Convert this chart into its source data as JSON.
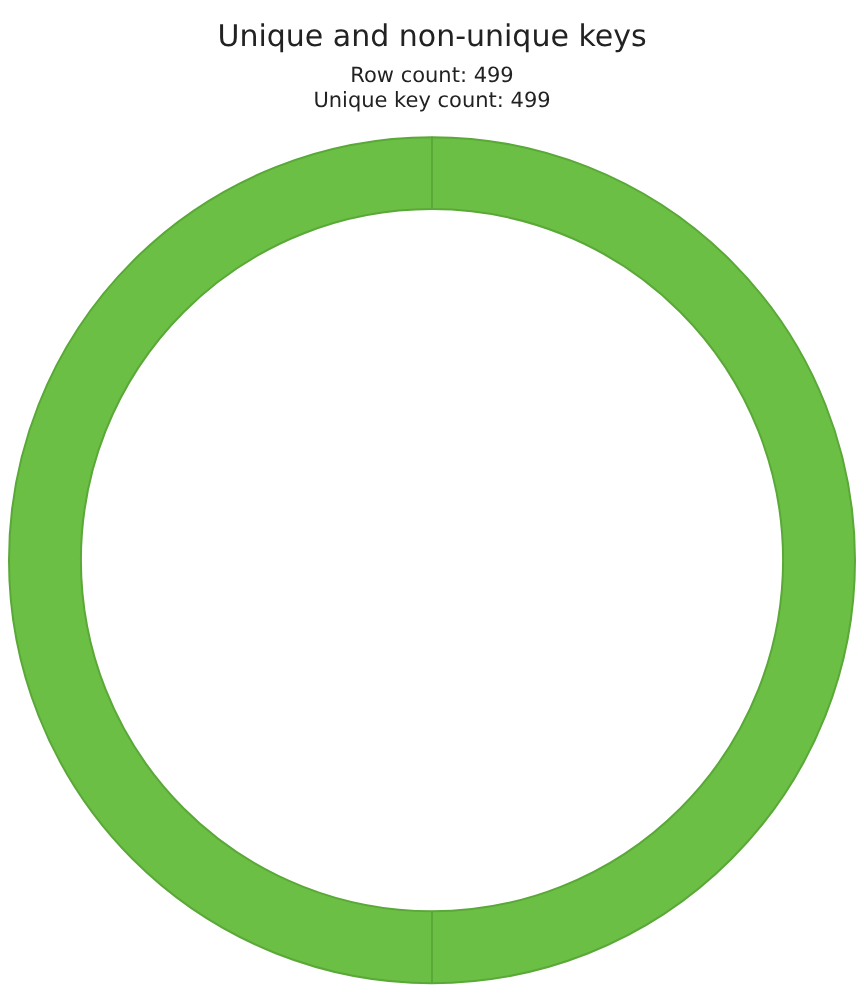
{
  "chart_data": {
    "type": "donut",
    "title": "Unique and non-unique keys",
    "subtitle": "Row count: 499",
    "annotations": [
      "Unique key count: 499"
    ],
    "categories": [
      null,
      null
    ],
    "values": [
      50,
      50
    ],
    "colors": [
      "#6cbf45",
      "#6cbf45"
    ],
    "legend": false
  }
}
